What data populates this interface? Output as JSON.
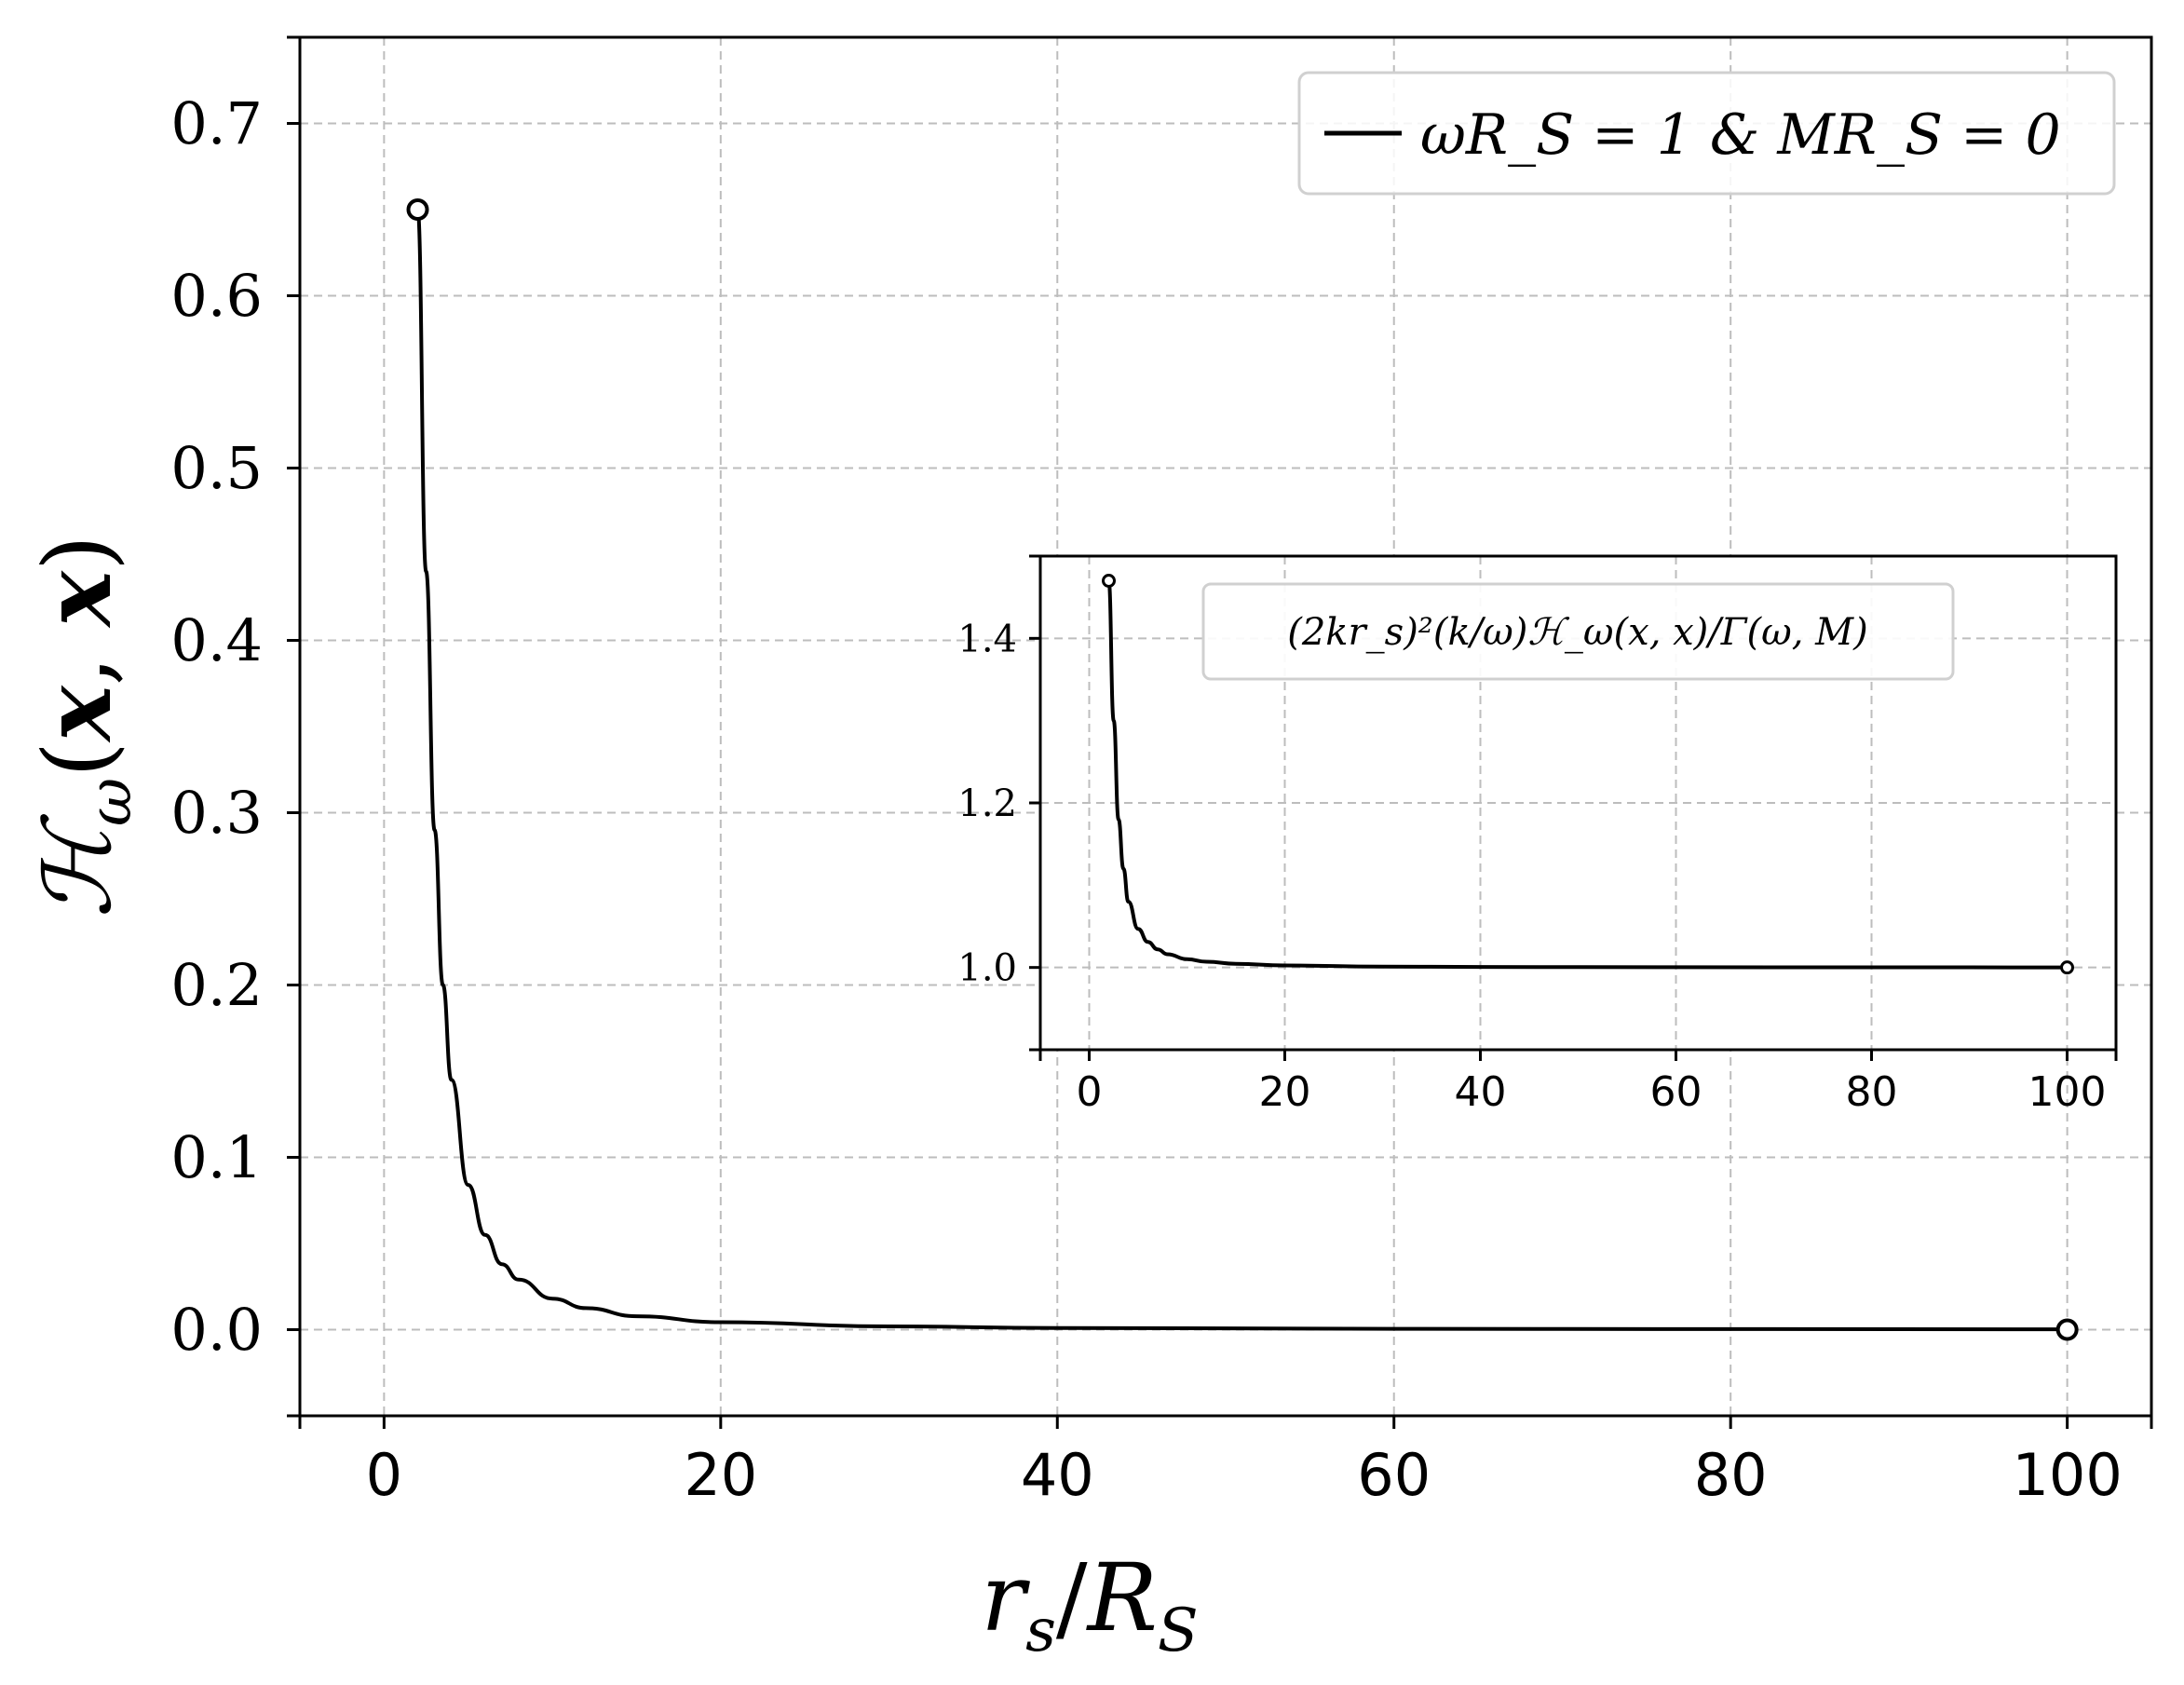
{
  "chart_data": [
    {
      "type": "line",
      "xlabel": "r_s/R_S",
      "ylabel": "ℋ_ω(x, x)",
      "xlim": [
        -5,
        105
      ],
      "ylim": [
        -0.05,
        0.75
      ],
      "xticks": [
        0,
        20,
        40,
        60,
        80,
        100
      ],
      "yticks": [
        0.0,
        0.1,
        0.2,
        0.3,
        0.4,
        0.5,
        0.6,
        0.7
      ],
      "xtick_labels": [
        "0",
        "20",
        "40",
        "60",
        "80",
        "100"
      ],
      "ytick_labels": [
        "0.0",
        "0.1",
        "0.2",
        "0.3",
        "0.4",
        "0.5",
        "0.6",
        "0.7"
      ],
      "grid": true,
      "legend_position": "top-right",
      "series": [
        {
          "name": "ωR_S = 1 & MR_S = 0",
          "color": "#000000",
          "x": [
            2,
            2.5,
            3,
            3.5,
            4,
            5,
            6,
            7,
            8,
            10,
            12,
            15,
            20,
            30,
            40,
            60,
            80,
            100
          ],
          "y": [
            0.65,
            0.44,
            0.29,
            0.2,
            0.145,
            0.084,
            0.055,
            0.038,
            0.029,
            0.018,
            0.0125,
            0.0078,
            0.0043,
            0.0019,
            0.001,
            0.0005,
            0.0003,
            0.0002
          ]
        }
      ],
      "endpoints": [
        {
          "x": 2,
          "y": 0.65
        },
        {
          "x": 100,
          "y": 0.0
        }
      ]
    },
    {
      "type": "line",
      "xlim": [
        -5,
        105
      ],
      "ylim": [
        0.9,
        1.5
      ],
      "xticks": [
        0,
        20,
        40,
        60,
        80,
        100
      ],
      "yticks": [
        1.0,
        1.2,
        1.4
      ],
      "xtick_labels": [
        "0",
        "20",
        "40",
        "60",
        "80",
        "100"
      ],
      "ytick_labels": [
        "1.0",
        "1.2",
        "1.4"
      ],
      "grid": true,
      "legend_position": "top-center",
      "series": [
        {
          "name": "(2kr_s)²(k/ω)ℋ_ω(x, x)/Γ(ω, M)",
          "color": "#000000",
          "x": [
            2,
            2.5,
            3,
            3.5,
            4,
            5,
            6,
            7,
            8,
            10,
            12,
            15,
            20,
            30,
            40,
            60,
            80,
            100
          ],
          "y": [
            1.47,
            1.3,
            1.18,
            1.12,
            1.08,
            1.047,
            1.031,
            1.022,
            1.016,
            1.01,
            1.007,
            1.0045,
            1.0025,
            1.0011,
            1.0006,
            1.0003,
            1.0002,
            1.0001
          ]
        }
      ],
      "endpoints": [
        {
          "x": 2,
          "y": 1.47
        },
        {
          "x": 100,
          "y": 1.0
        }
      ]
    }
  ]
}
